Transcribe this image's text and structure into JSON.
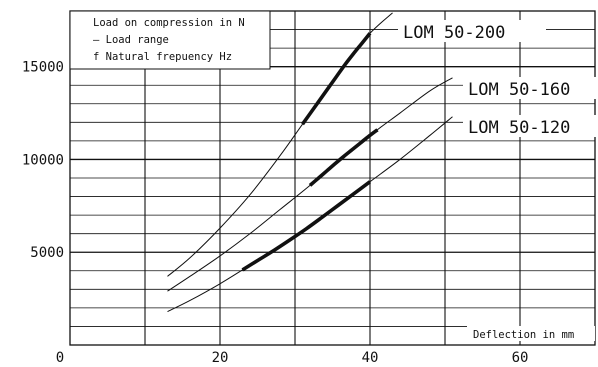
{
  "chart_data": {
    "type": "line",
    "title": "",
    "xlabel": "Deflection in mm",
    "ylabel": "",
    "xlim": [
      0,
      70
    ],
    "ylim": [
      0,
      18000
    ],
    "x_ticks": [
      0,
      20,
      40,
      60
    ],
    "x_tick_labels": [
      "0",
      "20",
      "40",
      "60"
    ],
    "y_ticks": [
      5000,
      10000,
      15000
    ],
    "y_tick_labels": [
      "5000",
      "10000",
      "15000"
    ],
    "grid": true,
    "legend_position": "top-left",
    "legend": [
      "Load on compression in N",
      "— Load range",
      "f Natural frepuency Hz"
    ],
    "series": [
      {
        "name": "LOM 50-200",
        "x": [
          13,
          16,
          20,
          24,
          28,
          31,
          34,
          37,
          40,
          43
        ],
        "y": [
          3700,
          4700,
          6300,
          8100,
          10200,
          11900,
          13600,
          15300,
          16800,
          17900
        ],
        "load_range": [
          31,
          40
        ]
      },
      {
        "name": "LOM 50-160",
        "x": [
          13,
          16,
          20,
          24,
          28,
          32,
          36,
          40,
          44,
          48,
          51
        ],
        "y": [
          2900,
          3700,
          4800,
          6000,
          7300,
          8600,
          10000,
          11300,
          12500,
          13700,
          14400
        ],
        "load_range": [
          32,
          41
        ]
      },
      {
        "name": "LOM 50-120",
        "x": [
          13,
          16,
          20,
          24,
          28,
          32,
          36,
          40,
          44,
          48,
          51
        ],
        "y": [
          1800,
          2400,
          3300,
          4300,
          5300,
          6400,
          7600,
          8800,
          10000,
          11300,
          12300
        ],
        "load_range": [
          23,
          40
        ]
      }
    ]
  }
}
